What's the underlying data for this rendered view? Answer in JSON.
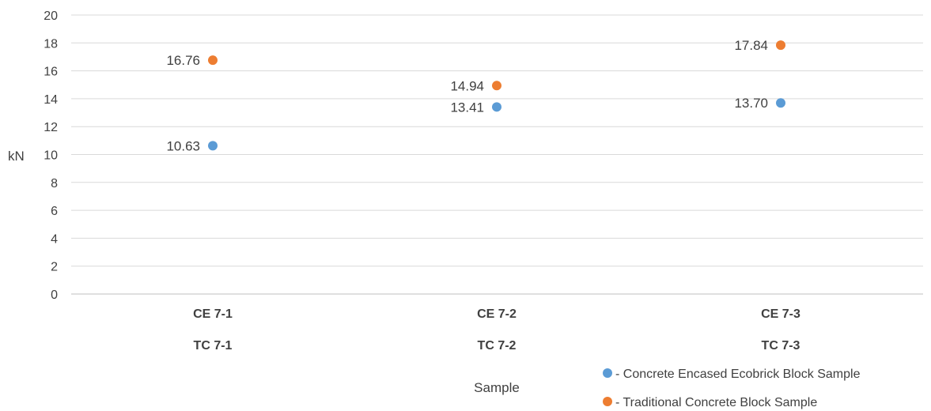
{
  "chart_data": {
    "type": "scatter",
    "xlabel": "Sample",
    "ylabel": "kN",
    "ylim": [
      0,
      20
    ],
    "ytick_step": 2,
    "grid": true,
    "legend_position": "bottom-right",
    "categories": [
      {
        "line1": "CE 7-1",
        "line2": "TC 7-1"
      },
      {
        "line1": "CE 7-2",
        "line2": "TC 7-2"
      },
      {
        "line1": "CE 7-3",
        "line2": "TC 7-3"
      }
    ],
    "series": [
      {
        "name": "- Concrete Encased Ecobrick Block Sample",
        "color": "#5B9BD5",
        "values": [
          10.63,
          13.41,
          13.7
        ],
        "labels": [
          "10.63",
          "13.41",
          "13.70"
        ]
      },
      {
        "name": "- Traditional Concrete Block Sample",
        "color": "#ED7D31",
        "values": [
          16.76,
          14.94,
          17.84
        ],
        "labels": [
          "16.76",
          "14.94",
          "17.84"
        ]
      }
    ]
  }
}
